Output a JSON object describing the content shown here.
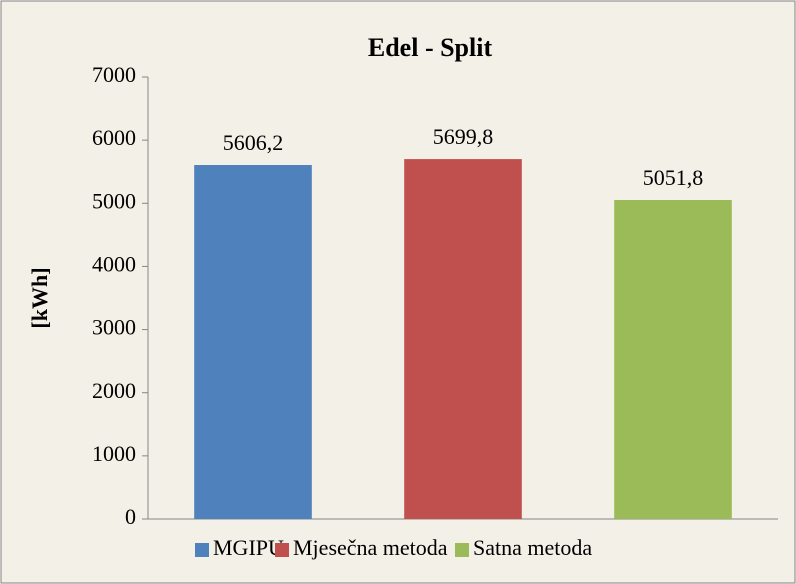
{
  "chart_data": {
    "type": "bar",
    "title": "Edel - Split",
    "y_label": "[kWh]",
    "categories": [
      null
    ],
    "series": [
      {
        "name": "MGIPU",
        "color": "#4f81bd",
        "values": [
          5606.2
        ],
        "value_labels": [
          "5606,2"
        ]
      },
      {
        "name": "Mjesečna metoda",
        "color": "#c0504d",
        "values": [
          5699.8
        ],
        "value_labels": [
          "5699,8"
        ]
      },
      {
        "name": "Satna metoda",
        "color": "#9bbb59",
        "values": [
          5051.8
        ],
        "value_labels": [
          "5051,8"
        ]
      }
    ],
    "ylim": [
      0,
      7000
    ],
    "yticks": [
      0,
      1000,
      2000,
      3000,
      4000,
      5000,
      6000,
      7000
    ],
    "grid": false,
    "legend": "bottom"
  }
}
